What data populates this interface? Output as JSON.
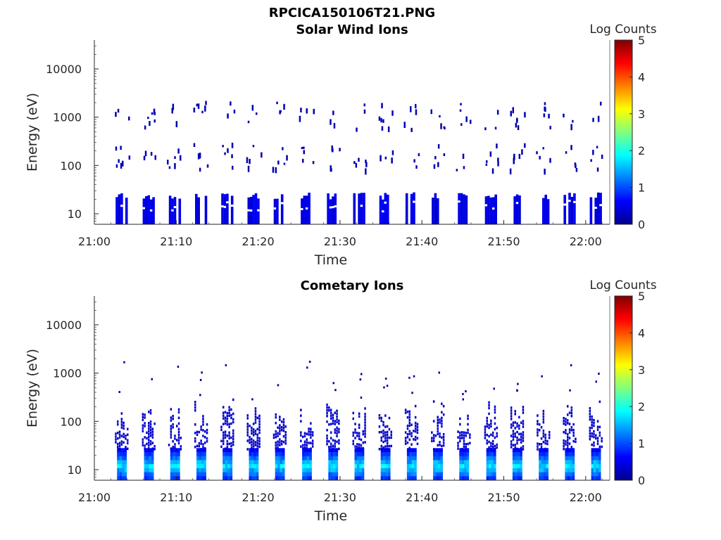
{
  "figure": {
    "title": "RPCICA150106T21.PNG"
  },
  "chart_data": [
    {
      "type": "heatmap",
      "title": "Solar Wind Ions",
      "xlabel": "Time",
      "ylabel": "Energy (eV)",
      "x_ticks": [
        "21:00",
        "21:10",
        "21:20",
        "21:30",
        "21:40",
        "21:50",
        "22:00"
      ],
      "y_ticks": [
        "10",
        "100",
        "1000",
        "10000"
      ],
      "y_scale": "log",
      "xlim": [
        "21:00",
        "22:03"
      ],
      "ylim": [
        6,
        50000
      ],
      "colorbar": {
        "label": "Log Counts",
        "ticks": [
          "0",
          "1",
          "2",
          "3",
          "4",
          "5"
        ],
        "range": [
          0,
          5
        ],
        "colormap": "jet"
      },
      "sweep_minutes": [
        3.2,
        6.5,
        9.7,
        12.9,
        16.1,
        19.3,
        22.5,
        25.8,
        29.0,
        32.2,
        35.4,
        38.6,
        41.8,
        45.0,
        48.3,
        51.5,
        54.7,
        57.9,
        61.1
      ],
      "low_energy_band_eV": [
        8,
        28
      ],
      "low_energy_log_counts": 0.4,
      "sparse_log_counts": 0.2,
      "sparse_energy_groups_eV": [
        [
          85,
          300
        ],
        [
          600,
          2200
        ]
      ]
    },
    {
      "type": "heatmap",
      "title": "Cometary Ions",
      "xlabel": "Time",
      "ylabel": "Energy (eV)",
      "x_ticks": [
        "21:00",
        "21:10",
        "21:20",
        "21:30",
        "21:40",
        "21:50",
        "22:00"
      ],
      "y_ticks": [
        "10",
        "100",
        "1000",
        "10000"
      ],
      "y_scale": "log",
      "xlim": [
        "21:00",
        "22:03"
      ],
      "ylim": [
        6,
        50000
      ],
      "colorbar": {
        "label": "Log Counts",
        "ticks": [
          "0",
          "1",
          "2",
          "3",
          "4",
          "5"
        ],
        "range": [
          0,
          5
        ],
        "colormap": "jet"
      },
      "sweep_minutes": [
        3.2,
        6.5,
        9.7,
        12.9,
        16.1,
        19.3,
        22.5,
        25.8,
        29.0,
        32.2,
        35.4,
        38.6,
        41.8,
        45.0,
        48.3,
        51.5,
        54.7,
        57.9,
        61.1
      ],
      "core_energy_eV": [
        8,
        28
      ],
      "core_log_counts_peak": 1.8,
      "tail_energy_eV": [
        28,
        300
      ],
      "tail_log_counts": 0.3,
      "sparse_high_energy_eV": [
        300,
        2000
      ]
    }
  ]
}
